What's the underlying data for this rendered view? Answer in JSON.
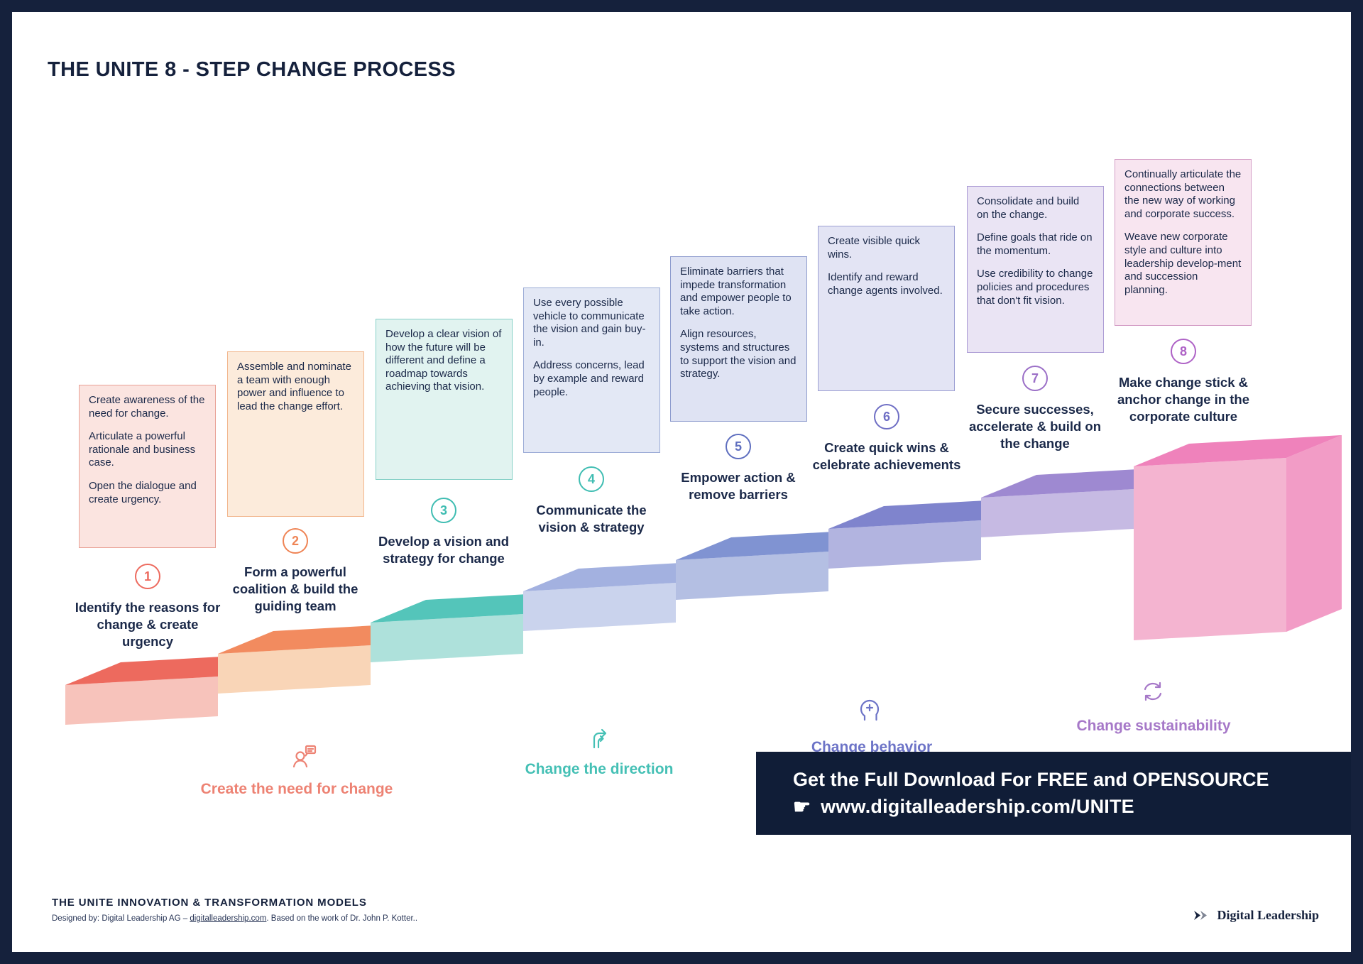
{
  "title": "THE UNITE 8 - STEP CHANGE PROCESS",
  "steps": [
    {
      "number": "1",
      "title": "Identify the reasons for change & create urgency",
      "paragraphs": [
        "Create awareness of the need for change.",
        "Articulate a powerful rationale and business case.",
        "Open the dialogue and create urgency."
      ],
      "badge_color": "#ED6A5E",
      "stair_top": "#ED6A5E",
      "stair_front": "#F7C3BB",
      "box_bg": "#FBE4E0",
      "box_border": "#E9A195"
    },
    {
      "number": "2",
      "title": "Form a powerful coalition & build the guiding team",
      "paragraphs": [
        "Assemble and nominate a team with enough power and influence to lead the change effort."
      ],
      "badge_color": "#EF8455",
      "stair_top": "#F28B5F",
      "stair_front": "#F9D5B7",
      "box_bg": "#FCEBDB",
      "box_border": "#F2B68C"
    },
    {
      "number": "3",
      "title": "Develop a vision and strategy for change",
      "paragraphs": [
        "Develop a clear vision of how the future will be different and define a roadmap towards achieving that vision."
      ],
      "badge_color": "#3FBDB2",
      "stair_top": "#54C5BA",
      "stair_front": "#AEE1DB",
      "box_bg": "#E1F3F0",
      "box_border": "#86D0C7"
    },
    {
      "number": "4",
      "title": "Communicate the vision & strategy",
      "paragraphs": [
        "Use every possible vehicle to communicate the vision and gain buy-in.",
        "Address concerns, lead by example and reward people."
      ],
      "badge_color": "#3FBDB2",
      "stair_top": "#A3B1E0",
      "stair_front": "#CAD3ED",
      "box_bg": "#E3E8F5",
      "box_border": "#9BABD6"
    },
    {
      "number": "5",
      "title": "Empower action & remove barriers",
      "paragraphs": [
        "Eliminate barriers that impede transformation and empower people to take action.",
        "Align resources, systems and structures to support the vision and strategy."
      ],
      "badge_color": "#5E6EBF",
      "stair_top": "#8093D2",
      "stair_front": "#B4BFE3",
      "box_bg": "#DFE3F3",
      "box_border": "#8E9CCE"
    },
    {
      "number": "6",
      "title": "Create quick wins & celebrate achievements",
      "paragraphs": [
        "Create visible quick wins.",
        "Identify and reward change agents involved."
      ],
      "badge_color": "#6E6EC4",
      "stair_top": "#7F84CD",
      "stair_front": "#B2B4E0",
      "box_bg": "#E3E4F4",
      "box_border": "#9C9FD3"
    },
    {
      "number": "7",
      "title": "Secure successes, accelerate & build on the change",
      "paragraphs": [
        "Consolidate and build on the change.",
        "Define goals that ride on the momentum.",
        "Use credibility to change policies and procedures that don't fit vision."
      ],
      "badge_color": "#9B6FC7",
      "stair_top": "#9E89D1",
      "stair_front": "#C6BAE3",
      "box_bg": "#EAE4F4",
      "box_border": "#AC9CD5"
    },
    {
      "number": "8",
      "title": "Make change stick & anchor change in the corporate culture",
      "paragraphs": [
        "Continually articulate the connections between the new way of working and corporate success.",
        "Weave new corporate style and culture into leadership develop-ment and succession planning."
      ],
      "badge_color": "#AE62C6",
      "stair_top": "#EF82BB",
      "stair_front": "#F4B4D0",
      "stair_side": "#F29CC6",
      "box_bg": "#F8E5F0",
      "box_border": "#D39CC5"
    }
  ],
  "phases": [
    {
      "label": "Create the need for change",
      "color": "#ED8273"
    },
    {
      "label": "Change the direction",
      "color": "#45C0B5"
    },
    {
      "label": "Change behavior",
      "color": "#6D74C7"
    },
    {
      "label": "Change sustainability",
      "color": "#A678C8"
    }
  ],
  "banner": {
    "bg": "#101D37",
    "pointer": "☛",
    "line1": "Get the Full Download For FREE and OPENSOURCE",
    "line2": "www.digitalleadership.com/UNITE"
  },
  "footer": {
    "heading": "THE UNITE INNOVATION & TRANSFORMATION MODELS",
    "byline_prefix": "Designed by: Digital Leadership AG – ",
    "byline_link": "digitalleadership.com",
    "byline_suffix": ". Based on the work of Dr. John P. Kotter..",
    "logo_text": "Digital Leadership"
  },
  "colors": {
    "navy": "#15213C",
    "text": "#1B2949"
  }
}
